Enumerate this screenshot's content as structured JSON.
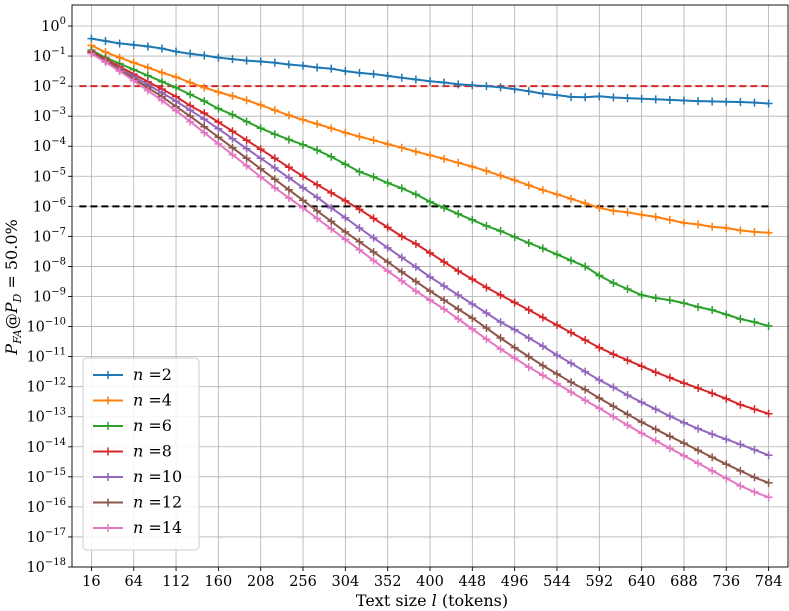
{
  "chart_data": {
    "type": "line",
    "xlabel": "Text size l (tokens)",
    "ylabel": "P_FA@P_D = 50.0%",
    "y_scale": "log",
    "grid": true,
    "legend_position": "lower-left",
    "xlim": [
      -6,
      806
    ],
    "ylim": [
      1e-18,
      5
    ],
    "x_ticks": [
      16,
      64,
      112,
      160,
      208,
      256,
      304,
      352,
      400,
      448,
      496,
      544,
      592,
      640,
      688,
      736,
      784
    ],
    "y_tick_exponents": [
      0,
      -1,
      -2,
      -3,
      -4,
      -5,
      -6,
      -7,
      -8,
      -9,
      -10,
      -11,
      -12,
      -13,
      -14,
      -15,
      -16,
      -17,
      -18
    ],
    "x": [
      16,
      32,
      48,
      64,
      80,
      96,
      112,
      128,
      144,
      160,
      176,
      192,
      208,
      224,
      240,
      256,
      272,
      288,
      304,
      320,
      336,
      352,
      368,
      384,
      400,
      416,
      432,
      448,
      464,
      480,
      496,
      512,
      528,
      544,
      560,
      576,
      592,
      608,
      624,
      640,
      656,
      672,
      688,
      704,
      720,
      736,
      752,
      768,
      784
    ],
    "reference_lines": [
      {
        "y": 0.01,
        "color": "#d62728",
        "style": "dashed"
      },
      {
        "y": 1e-06,
        "color": "#000000",
        "style": "dashed"
      }
    ],
    "series": [
      {
        "name": "n =2",
        "color": "#1f77b4",
        "log10_values": [
          -0.42,
          -0.5,
          -0.58,
          -0.63,
          -0.68,
          -0.75,
          -0.85,
          -0.92,
          -0.98,
          -1.05,
          -1.1,
          -1.15,
          -1.18,
          -1.22,
          -1.28,
          -1.32,
          -1.38,
          -1.42,
          -1.5,
          -1.56,
          -1.6,
          -1.66,
          -1.72,
          -1.78,
          -1.84,
          -1.88,
          -1.94,
          -1.97,
          -2.0,
          -2.04,
          -2.1,
          -2.17,
          -2.25,
          -2.3,
          -2.36,
          -2.37,
          -2.34,
          -2.38,
          -2.4,
          -2.42,
          -2.44,
          -2.46,
          -2.48,
          -2.5,
          -2.51,
          -2.52,
          -2.53,
          -2.55,
          -2.58
        ]
      },
      {
        "name": "n =4",
        "color": "#ff7f0e",
        "log10_values": [
          -0.65,
          -0.87,
          -1.05,
          -1.22,
          -1.38,
          -1.55,
          -1.7,
          -1.88,
          -2.05,
          -2.2,
          -2.33,
          -2.47,
          -2.63,
          -2.8,
          -2.97,
          -3.12,
          -3.26,
          -3.4,
          -3.55,
          -3.68,
          -3.8,
          -3.93,
          -4.05,
          -4.18,
          -4.3,
          -4.42,
          -4.55,
          -4.68,
          -4.82,
          -4.98,
          -5.13,
          -5.3,
          -5.46,
          -5.6,
          -5.75,
          -5.9,
          -6.05,
          -6.15,
          -6.2,
          -6.28,
          -6.35,
          -6.45,
          -6.55,
          -6.6,
          -6.68,
          -6.72,
          -6.8,
          -6.85,
          -6.88
        ]
      },
      {
        "name": "n =6",
        "color": "#2ca02c",
        "log10_values": [
          -0.8,
          -1.05,
          -1.25,
          -1.45,
          -1.65,
          -1.85,
          -2.05,
          -2.28,
          -2.5,
          -2.75,
          -2.95,
          -3.18,
          -3.4,
          -3.6,
          -3.78,
          -3.95,
          -4.13,
          -4.35,
          -4.6,
          -4.85,
          -5.02,
          -5.22,
          -5.4,
          -5.6,
          -5.85,
          -6.05,
          -6.25,
          -6.45,
          -6.65,
          -6.82,
          -7.02,
          -7.22,
          -7.4,
          -7.6,
          -7.8,
          -8.0,
          -8.3,
          -8.55,
          -8.75,
          -8.95,
          -9.05,
          -9.12,
          -9.22,
          -9.35,
          -9.45,
          -9.6,
          -9.75,
          -9.85,
          -9.98
        ]
      },
      {
        "name": "n =8",
        "color": "#d62728",
        "log10_values": [
          -0.85,
          -1.1,
          -1.35,
          -1.6,
          -1.85,
          -2.1,
          -2.35,
          -2.65,
          -2.9,
          -3.2,
          -3.5,
          -3.8,
          -4.1,
          -4.4,
          -4.7,
          -5.0,
          -5.28,
          -5.55,
          -5.82,
          -6.1,
          -6.4,
          -6.7,
          -7.0,
          -7.25,
          -7.55,
          -7.85,
          -8.15,
          -8.42,
          -8.7,
          -8.95,
          -9.2,
          -9.45,
          -9.7,
          -9.95,
          -10.2,
          -10.45,
          -10.7,
          -10.92,
          -11.12,
          -11.32,
          -11.52,
          -11.7,
          -11.88,
          -12.05,
          -12.22,
          -12.4,
          -12.6,
          -12.75,
          -12.9
        ]
      },
      {
        "name": "n =10",
        "color": "#9467bd",
        "log10_values": [
          -0.9,
          -1.15,
          -1.42,
          -1.68,
          -1.95,
          -2.22,
          -2.5,
          -2.8,
          -3.1,
          -3.42,
          -3.75,
          -4.08,
          -4.4,
          -4.72,
          -5.05,
          -5.38,
          -5.7,
          -6.05,
          -6.38,
          -6.72,
          -7.05,
          -7.38,
          -7.7,
          -8.02,
          -8.35,
          -8.65,
          -8.95,
          -9.25,
          -9.55,
          -9.85,
          -10.1,
          -10.38,
          -10.65,
          -10.95,
          -11.22,
          -11.5,
          -11.78,
          -12.02,
          -12.28,
          -12.52,
          -12.75,
          -12.98,
          -13.2,
          -13.4,
          -13.58,
          -13.75,
          -13.92,
          -14.1,
          -14.28
        ]
      },
      {
        "name": "n =12",
        "color": "#8c564b",
        "log10_values": [
          -0.88,
          -1.15,
          -1.45,
          -1.75,
          -2.05,
          -2.35,
          -2.68,
          -3.0,
          -3.35,
          -3.7,
          -4.05,
          -4.4,
          -4.75,
          -5.1,
          -5.45,
          -5.8,
          -6.15,
          -6.5,
          -6.85,
          -7.18,
          -7.52,
          -7.85,
          -8.18,
          -8.5,
          -8.82,
          -9.12,
          -9.42,
          -9.72,
          -10.05,
          -10.38,
          -10.7,
          -11.0,
          -11.3,
          -11.58,
          -11.85,
          -12.1,
          -12.38,
          -12.65,
          -12.92,
          -13.18,
          -13.42,
          -13.65,
          -13.88,
          -14.12,
          -14.35,
          -14.58,
          -14.8,
          -15.02,
          -15.2
        ]
      },
      {
        "name": "n =14",
        "color": "#e377c2",
        "log10_values": [
          -0.92,
          -1.2,
          -1.5,
          -1.82,
          -2.15,
          -2.48,
          -2.82,
          -3.18,
          -3.55,
          -3.92,
          -4.28,
          -4.65,
          -5.02,
          -5.38,
          -5.72,
          -6.05,
          -6.4,
          -6.75,
          -7.1,
          -7.45,
          -7.8,
          -8.15,
          -8.48,
          -8.82,
          -9.12,
          -9.42,
          -9.75,
          -10.08,
          -10.42,
          -10.75,
          -11.05,
          -11.35,
          -11.62,
          -11.9,
          -12.18,
          -12.45,
          -12.72,
          -13.0,
          -13.28,
          -13.55,
          -13.8,
          -14.05,
          -14.3,
          -14.55,
          -14.8,
          -15.05,
          -15.3,
          -15.5,
          -15.68
        ]
      }
    ]
  }
}
